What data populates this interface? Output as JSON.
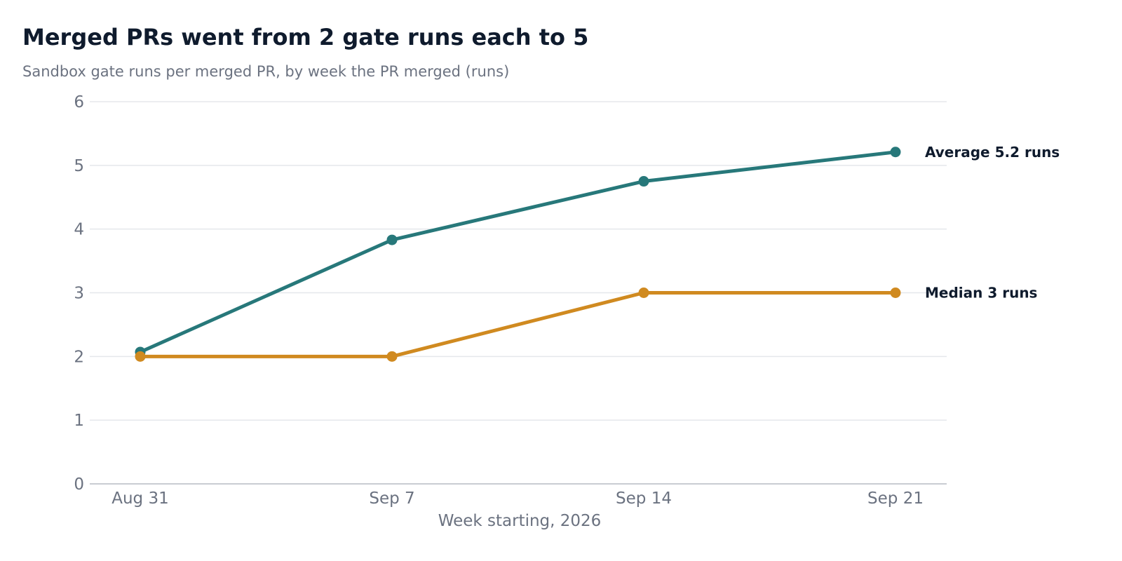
{
  "chart_data": {
    "type": "line",
    "title": "Merged PRs went from 2 gate runs each to 5",
    "subtitle": "Sandbox gate runs per merged PR, by week the PR merged (runs)",
    "xlabel": "Week starting, 2026",
    "ylabel": "",
    "categories": [
      "Aug 31",
      "Sep 7",
      "Sep 14",
      "Sep 21"
    ],
    "yticks": [
      "0",
      "1",
      "2",
      "3",
      "4",
      "5",
      "6"
    ],
    "ylim": [
      0,
      6
    ],
    "grid": true,
    "legend": "end-labels",
    "series": [
      {
        "name": "Average",
        "values": [
          2.07,
          3.83,
          4.75,
          5.21
        ],
        "end_label": "Average  5.2 runs",
        "color": "#27787a"
      },
      {
        "name": "Median",
        "values": [
          2,
          2,
          3,
          3
        ],
        "end_label": "Median  3 runs",
        "color": "#d08a20"
      }
    ],
    "colors": {
      "grid": "#e5e7eb",
      "axis": "#b7bcc4",
      "text_muted": "#6b7280",
      "text_dark": "#0f1b2d"
    }
  }
}
